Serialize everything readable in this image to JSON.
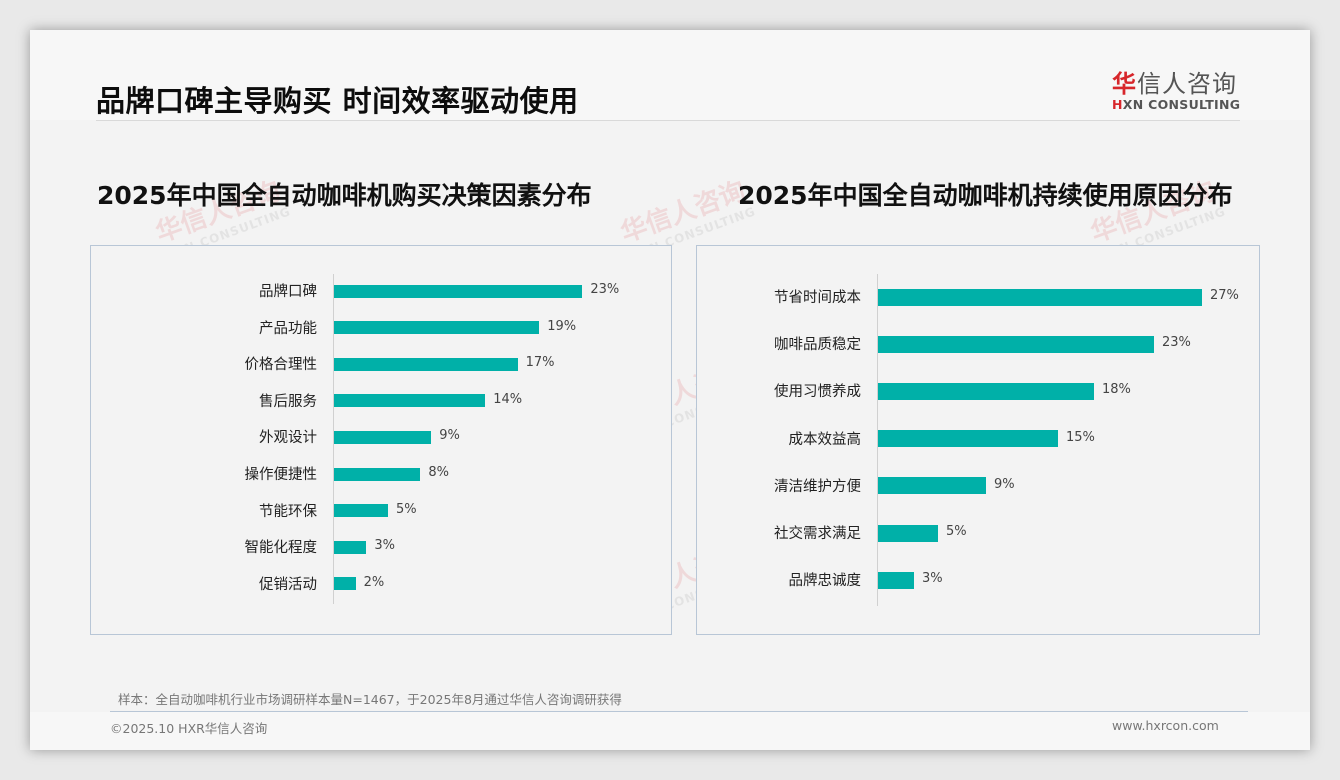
{
  "header": {
    "title": "品牌口碑主导购买 时间效率驱动使用",
    "logo": {
      "cn_first": "华",
      "cn_rest": "信人咨询",
      "en_mark": "H",
      "en_rest": "XN CONSULTING"
    }
  },
  "watermark": {
    "cn": "华信人咨询",
    "en": "HXN CONSULTING"
  },
  "charts": {
    "left": {
      "title": "2025年中国全自动咖啡机购买决策因素分布",
      "items": [
        {
          "label": "品牌口碑",
          "value": 23,
          "display": "23%"
        },
        {
          "label": "产品功能",
          "value": 19,
          "display": "19%"
        },
        {
          "label": "价格合理性",
          "value": 17,
          "display": "17%"
        },
        {
          "label": "售后服务",
          "value": 14,
          "display": "14%"
        },
        {
          "label": "外观设计",
          "value": 9,
          "display": "9%"
        },
        {
          "label": "操作便捷性",
          "value": 8,
          "display": "8%"
        },
        {
          "label": "节能环保",
          "value": 5,
          "display": "5%"
        },
        {
          "label": "智能化程度",
          "value": 3,
          "display": "3%"
        },
        {
          "label": "促销活动",
          "value": 2,
          "display": "2%"
        }
      ]
    },
    "right": {
      "title": "2025年中国全自动咖啡机持续使用原因分布",
      "items": [
        {
          "label": "节省时间成本",
          "value": 27,
          "display": "27%"
        },
        {
          "label": "咖啡品质稳定",
          "value": 23,
          "display": "23%"
        },
        {
          "label": "使用习惯养成",
          "value": 18,
          "display": "18%"
        },
        {
          "label": "成本效益高",
          "value": 15,
          "display": "15%"
        },
        {
          "label": "清洁维护方便",
          "value": 9,
          "display": "9%"
        },
        {
          "label": "社交需求满足",
          "value": 5,
          "display": "5%"
        },
        {
          "label": "品牌忠诚度",
          "value": 3,
          "display": "3%"
        }
      ]
    }
  },
  "colors": {
    "bar": "#00b0a8",
    "brand_red": "#d7262b",
    "panel_border": "#b8c6d6"
  },
  "footer": {
    "source_note": "样本：全自动咖啡机行业市场调研样本量N=1467，于2025年8月通过华信人咨询调研获得",
    "copyright": "©2025.10 HXR华信人咨询",
    "website": "www.hxrcon.com"
  },
  "chart_data": [
    {
      "type": "bar",
      "orientation": "horizontal",
      "title": "2025年中国全自动咖啡机购买决策因素分布",
      "categories": [
        "品牌口碑",
        "产品功能",
        "价格合理性",
        "售后服务",
        "外观设计",
        "操作便捷性",
        "节能环保",
        "智能化程度",
        "促销活动"
      ],
      "values": [
        23,
        19,
        17,
        14,
        9,
        8,
        5,
        3,
        2
      ],
      "unit": "%",
      "xlabel": "",
      "ylabel": "",
      "grid": false,
      "legend": null
    },
    {
      "type": "bar",
      "orientation": "horizontal",
      "title": "2025年中国全自动咖啡机持续使用原因分布",
      "categories": [
        "节省时间成本",
        "咖啡品质稳定",
        "使用习惯养成",
        "成本效益高",
        "清洁维护方便",
        "社交需求满足",
        "品牌忠诚度"
      ],
      "values": [
        27,
        23,
        18,
        15,
        9,
        5,
        3
      ],
      "unit": "%",
      "xlabel": "",
      "ylabel": "",
      "grid": false,
      "legend": null
    }
  ]
}
